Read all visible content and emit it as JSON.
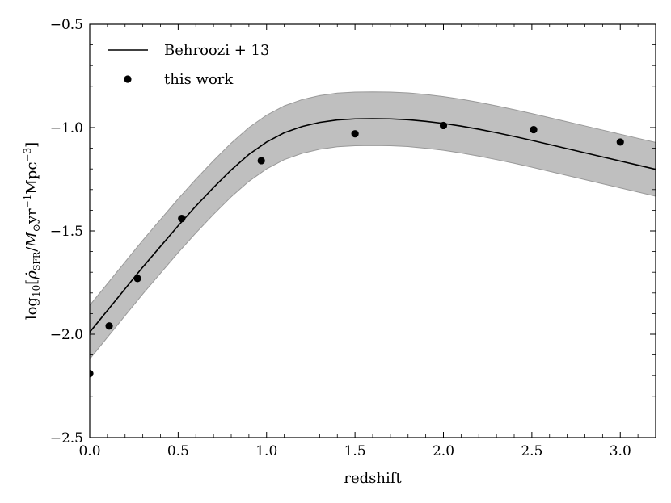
{
  "chart_data": {
    "type": "line",
    "title": "",
    "xlabel": "redshift",
    "ylabel": "log₁₀[ρ̇_SFR / M⊙ yr⁻¹ Mpc⁻³]",
    "ylabel_parts": {
      "prefix": "log",
      "log_base": "10",
      "open_bracket": "[",
      "rho": "ρ̇",
      "rho_sub": "SFR",
      "slash": "/",
      "mass": "M",
      "mass_sub": "⊙",
      "yr": "yr",
      "yr_exp": "−1",
      "mpc": "Mpc",
      "mpc_exp": "−3",
      "close_bracket": "]"
    },
    "xlim": [
      0.0,
      3.2
    ],
    "ylim": [
      -2.5,
      -0.5
    ],
    "xticks": [
      0.0,
      0.5,
      1.0,
      1.5,
      2.0,
      2.5,
      3.0
    ],
    "xtick_labels": [
      "0.0",
      "0.5",
      "1.0",
      "1.5",
      "2.0",
      "2.5",
      "3.0"
    ],
    "yticks": [
      -2.5,
      -2.0,
      -1.5,
      -1.0,
      -0.5
    ],
    "ytick_labels": [
      "−2.5",
      "−2.0",
      "−1.5",
      "−1.0",
      "−0.5"
    ],
    "grid": false,
    "legend_position": "top-left",
    "series": [
      {
        "name": "Behroozi + 13",
        "kind": "line",
        "color": "#000000",
        "x": [
          0.0,
          0.1,
          0.2,
          0.3,
          0.4,
          0.5,
          0.6,
          0.7,
          0.8,
          0.9,
          1.0,
          1.1,
          1.2,
          1.3,
          1.4,
          1.5,
          1.6,
          1.7,
          1.8,
          1.9,
          2.0,
          2.1,
          2.2,
          2.3,
          2.4,
          2.5,
          2.6,
          2.7,
          2.8,
          2.9,
          3.0,
          3.1,
          3.2
        ],
        "y": [
          -1.99,
          -1.885,
          -1.78,
          -1.675,
          -1.575,
          -1.475,
          -1.38,
          -1.29,
          -1.205,
          -1.13,
          -1.07,
          -1.025,
          -0.995,
          -0.975,
          -0.963,
          -0.958,
          -0.957,
          -0.958,
          -0.962,
          -0.97,
          -0.98,
          -0.993,
          -1.008,
          -1.025,
          -1.043,
          -1.062,
          -1.082,
          -1.102,
          -1.122,
          -1.142,
          -1.162,
          -1.182,
          -1.202
        ]
      },
      {
        "name": "this work",
        "kind": "points",
        "color": "#000000",
        "x": [
          0.0,
          0.11,
          0.27,
          0.52,
          0.97,
          1.5,
          2.0,
          2.51,
          3.0
        ],
        "y": [
          -2.19,
          -1.96,
          -1.73,
          -1.44,
          -1.16,
          -1.03,
          -0.99,
          -1.01,
          -1.07
        ]
      }
    ],
    "band": {
      "name": "uncertainty band",
      "color": "#bfbfbf",
      "edge_color": "#999999",
      "half_width": 0.13
    }
  }
}
